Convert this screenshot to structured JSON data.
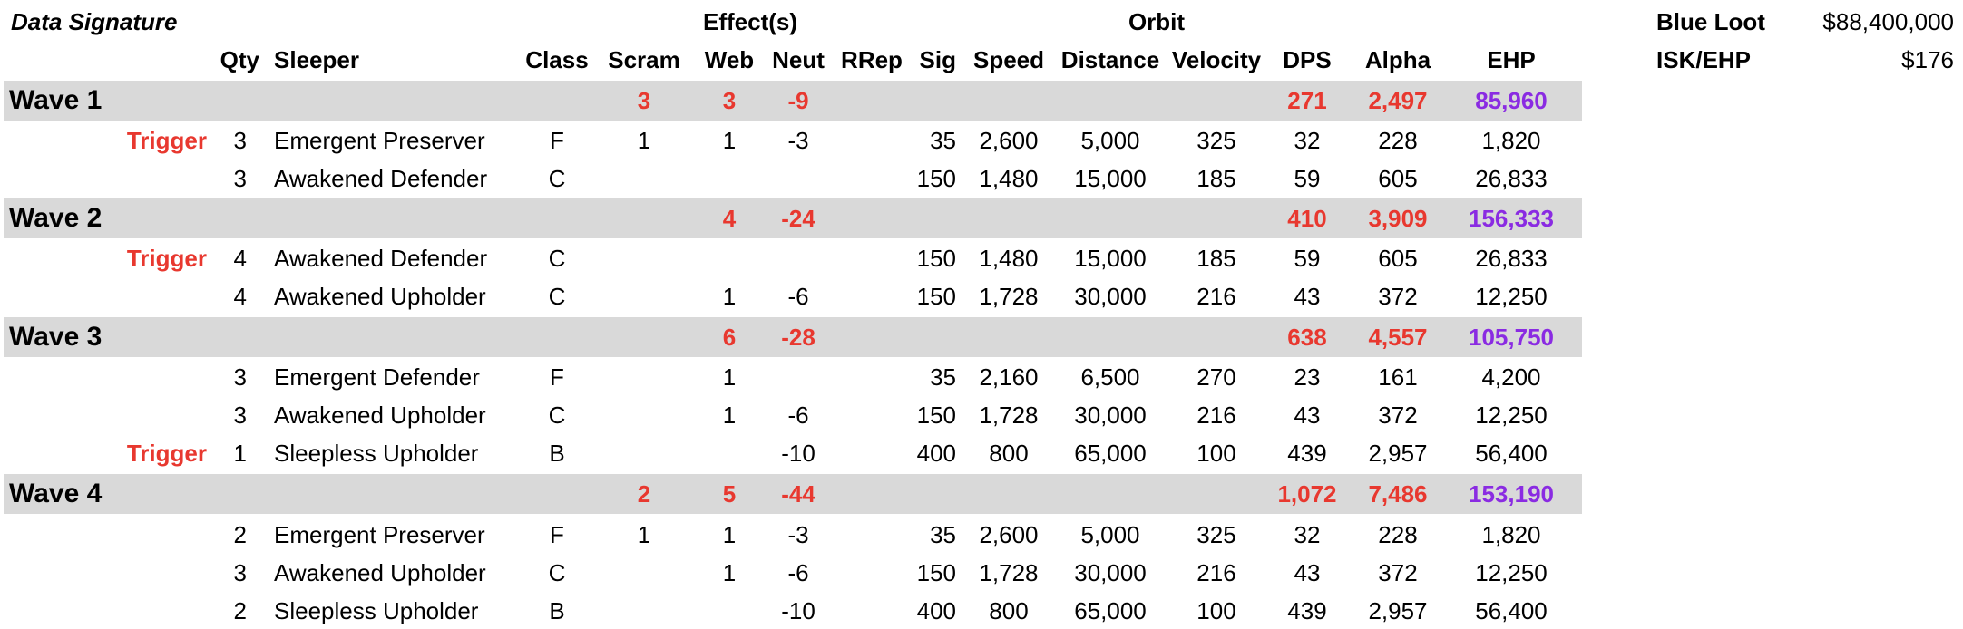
{
  "title": "Data Signature",
  "group_headers": {
    "effects": "Effect(s)",
    "orbit": "Orbit"
  },
  "summary": {
    "blue_loot_label": "Blue Loot",
    "blue_loot_value": "$88,400,000",
    "isk_ehp_label": "ISK/EHP",
    "isk_ehp_value": "$176"
  },
  "columns": {
    "qty": "Qty",
    "sleeper": "Sleeper",
    "class": "Class",
    "scram": "Scram",
    "web": "Web",
    "neut": "Neut",
    "rrep": "RRep",
    "sig": "Sig",
    "speed": "Speed",
    "distance": "Distance",
    "velocity": "Velocity",
    "dps": "DPS",
    "alpha": "Alpha",
    "ehp": "EHP"
  },
  "waves": [
    {
      "name": "Wave 1",
      "totals": {
        "scram": "3",
        "web": "3",
        "neut": "-9",
        "dps": "271",
        "alpha": "2,497",
        "ehp": "85,960"
      },
      "rows": [
        {
          "trigger": "Trigger",
          "qty": "3",
          "sleeper": "Emergent Preserver",
          "class": "F",
          "scram": "1",
          "web": "1",
          "neut": "-3",
          "rrep": "",
          "sig": "35",
          "speed": "2,600",
          "distance": "5,000",
          "velocity": "325",
          "dps": "32",
          "alpha": "228",
          "ehp": "1,820"
        },
        {
          "trigger": "",
          "qty": "3",
          "sleeper": "Awakened Defender",
          "class": "C",
          "scram": "",
          "web": "",
          "neut": "",
          "rrep": "",
          "sig": "150",
          "speed": "1,480",
          "distance": "15,000",
          "velocity": "185",
          "dps": "59",
          "alpha": "605",
          "ehp": "26,833"
        }
      ]
    },
    {
      "name": "Wave 2",
      "totals": {
        "scram": "",
        "web": "4",
        "neut": "-24",
        "dps": "410",
        "alpha": "3,909",
        "ehp": "156,333"
      },
      "rows": [
        {
          "trigger": "Trigger",
          "qty": "4",
          "sleeper": "Awakened Defender",
          "class": "C",
          "scram": "",
          "web": "",
          "neut": "",
          "rrep": "",
          "sig": "150",
          "speed": "1,480",
          "distance": "15,000",
          "velocity": "185",
          "dps": "59",
          "alpha": "605",
          "ehp": "26,833"
        },
        {
          "trigger": "",
          "qty": "4",
          "sleeper": "Awakened Upholder",
          "class": "C",
          "scram": "",
          "web": "1",
          "neut": "-6",
          "rrep": "",
          "sig": "150",
          "speed": "1,728",
          "distance": "30,000",
          "velocity": "216",
          "dps": "43",
          "alpha": "372",
          "ehp": "12,250"
        }
      ]
    },
    {
      "name": "Wave 3",
      "totals": {
        "scram": "",
        "web": "6",
        "neut": "-28",
        "dps": "638",
        "alpha": "4,557",
        "ehp": "105,750"
      },
      "rows": [
        {
          "trigger": "",
          "qty": "3",
          "sleeper": "Emergent Defender",
          "class": "F",
          "scram": "",
          "web": "1",
          "neut": "",
          "rrep": "",
          "sig": "35",
          "speed": "2,160",
          "distance": "6,500",
          "velocity": "270",
          "dps": "23",
          "alpha": "161",
          "ehp": "4,200"
        },
        {
          "trigger": "",
          "qty": "3",
          "sleeper": "Awakened Upholder",
          "class": "C",
          "scram": "",
          "web": "1",
          "neut": "-6",
          "rrep": "",
          "sig": "150",
          "speed": "1,728",
          "distance": "30,000",
          "velocity": "216",
          "dps": "43",
          "alpha": "372",
          "ehp": "12,250"
        },
        {
          "trigger": "Trigger",
          "qty": "1",
          "sleeper": "Sleepless Upholder",
          "class": "B",
          "scram": "",
          "web": "",
          "neut": "-10",
          "rrep": "",
          "sig": "400",
          "speed": "800",
          "distance": "65,000",
          "velocity": "100",
          "dps": "439",
          "alpha": "2,957",
          "ehp": "56,400"
        }
      ]
    },
    {
      "name": "Wave 4",
      "totals": {
        "scram": "2",
        "web": "5",
        "neut": "-44",
        "dps": "1,072",
        "alpha": "7,486",
        "ehp": "153,190"
      },
      "rows": [
        {
          "trigger": "",
          "qty": "2",
          "sleeper": "Emergent Preserver",
          "class": "F",
          "scram": "1",
          "web": "1",
          "neut": "-3",
          "rrep": "",
          "sig": "35",
          "speed": "2,600",
          "distance": "5,000",
          "velocity": "325",
          "dps": "32",
          "alpha": "228",
          "ehp": "1,820"
        },
        {
          "trigger": "",
          "qty": "3",
          "sleeper": "Awakened Upholder",
          "class": "C",
          "scram": "",
          "web": "1",
          "neut": "-6",
          "rrep": "",
          "sig": "150",
          "speed": "1,728",
          "distance": "30,000",
          "velocity": "216",
          "dps": "43",
          "alpha": "372",
          "ehp": "12,250"
        },
        {
          "trigger": "",
          "qty": "2",
          "sleeper": "Sleepless Upholder",
          "class": "B",
          "scram": "",
          "web": "",
          "neut": "-10",
          "rrep": "",
          "sig": "400",
          "speed": "800",
          "distance": "65,000",
          "velocity": "100",
          "dps": "439",
          "alpha": "2,957",
          "ehp": "56,400"
        }
      ]
    }
  ],
  "colors": {
    "band": "#d9d9d9",
    "red": "#e8382f",
    "purple": "#8a2be2"
  }
}
